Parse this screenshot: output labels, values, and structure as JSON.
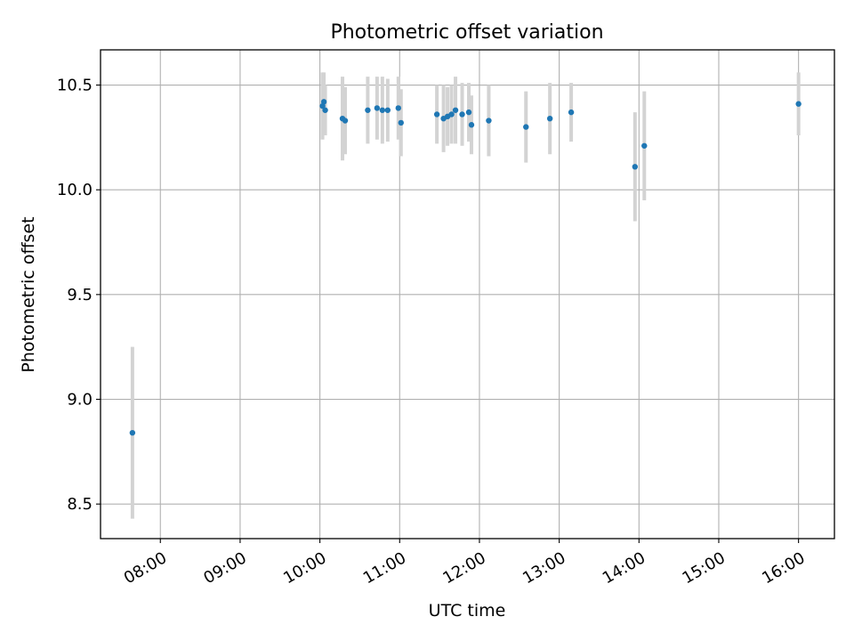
{
  "chart_data": {
    "type": "scatter",
    "title": "Photometric offset variation",
    "xlabel": "UTC time",
    "ylabel": "Photometric offset",
    "grid": true,
    "x_ticks": [
      "08:00",
      "09:00",
      "10:00",
      "11:00",
      "12:00",
      "13:00",
      "14:00",
      "15:00",
      "16:00"
    ],
    "y_ticks": [
      "8.5",
      "9.0",
      "9.5",
      "10.0",
      "10.5"
    ],
    "colors": {
      "point": "#1f77b4",
      "errorbar": "#d3d3d3",
      "grid": "#b0b0b0"
    },
    "points": [
      {
        "time": "07:39",
        "y": 8.84,
        "err": 0.41
      },
      {
        "time": "10:02",
        "y": 10.4,
        "err": 0.16
      },
      {
        "time": "10:03",
        "y": 10.42,
        "err": 0.14
      },
      {
        "time": "10:04",
        "y": 10.38,
        "err": 0.12
      },
      {
        "time": "10:17",
        "y": 10.34,
        "err": 0.2
      },
      {
        "time": "10:19",
        "y": 10.33,
        "err": 0.16
      },
      {
        "time": "10:36",
        "y": 10.38,
        "err": 0.16
      },
      {
        "time": "10:43",
        "y": 10.39,
        "err": 0.15
      },
      {
        "time": "10:47",
        "y": 10.38,
        "err": 0.16
      },
      {
        "time": "10:51",
        "y": 10.38,
        "err": 0.15
      },
      {
        "time": "10:59",
        "y": 10.39,
        "err": 0.15
      },
      {
        "time": "11:01",
        "y": 10.32,
        "err": 0.16
      },
      {
        "time": "11:28",
        "y": 10.36,
        "err": 0.14
      },
      {
        "time": "11:33",
        "y": 10.34,
        "err": 0.16
      },
      {
        "time": "11:36",
        "y": 10.35,
        "err": 0.14
      },
      {
        "time": "11:39",
        "y": 10.36,
        "err": 0.14
      },
      {
        "time": "11:42",
        "y": 10.38,
        "err": 0.16
      },
      {
        "time": "11:47",
        "y": 10.36,
        "err": 0.15
      },
      {
        "time": "11:52",
        "y": 10.37,
        "err": 0.14
      },
      {
        "time": "11:54",
        "y": 10.31,
        "err": 0.14
      },
      {
        "time": "12:07",
        "y": 10.33,
        "err": 0.17
      },
      {
        "time": "12:35",
        "y": 10.3,
        "err": 0.17
      },
      {
        "time": "12:53",
        "y": 10.34,
        "err": 0.17
      },
      {
        "time": "13:09",
        "y": 10.37,
        "err": 0.14
      },
      {
        "time": "13:57",
        "y": 10.11,
        "err": 0.26
      },
      {
        "time": "14:04",
        "y": 10.21,
        "err": 0.26
      },
      {
        "time": "16:00",
        "y": 10.41,
        "err": 0.15
      }
    ]
  }
}
